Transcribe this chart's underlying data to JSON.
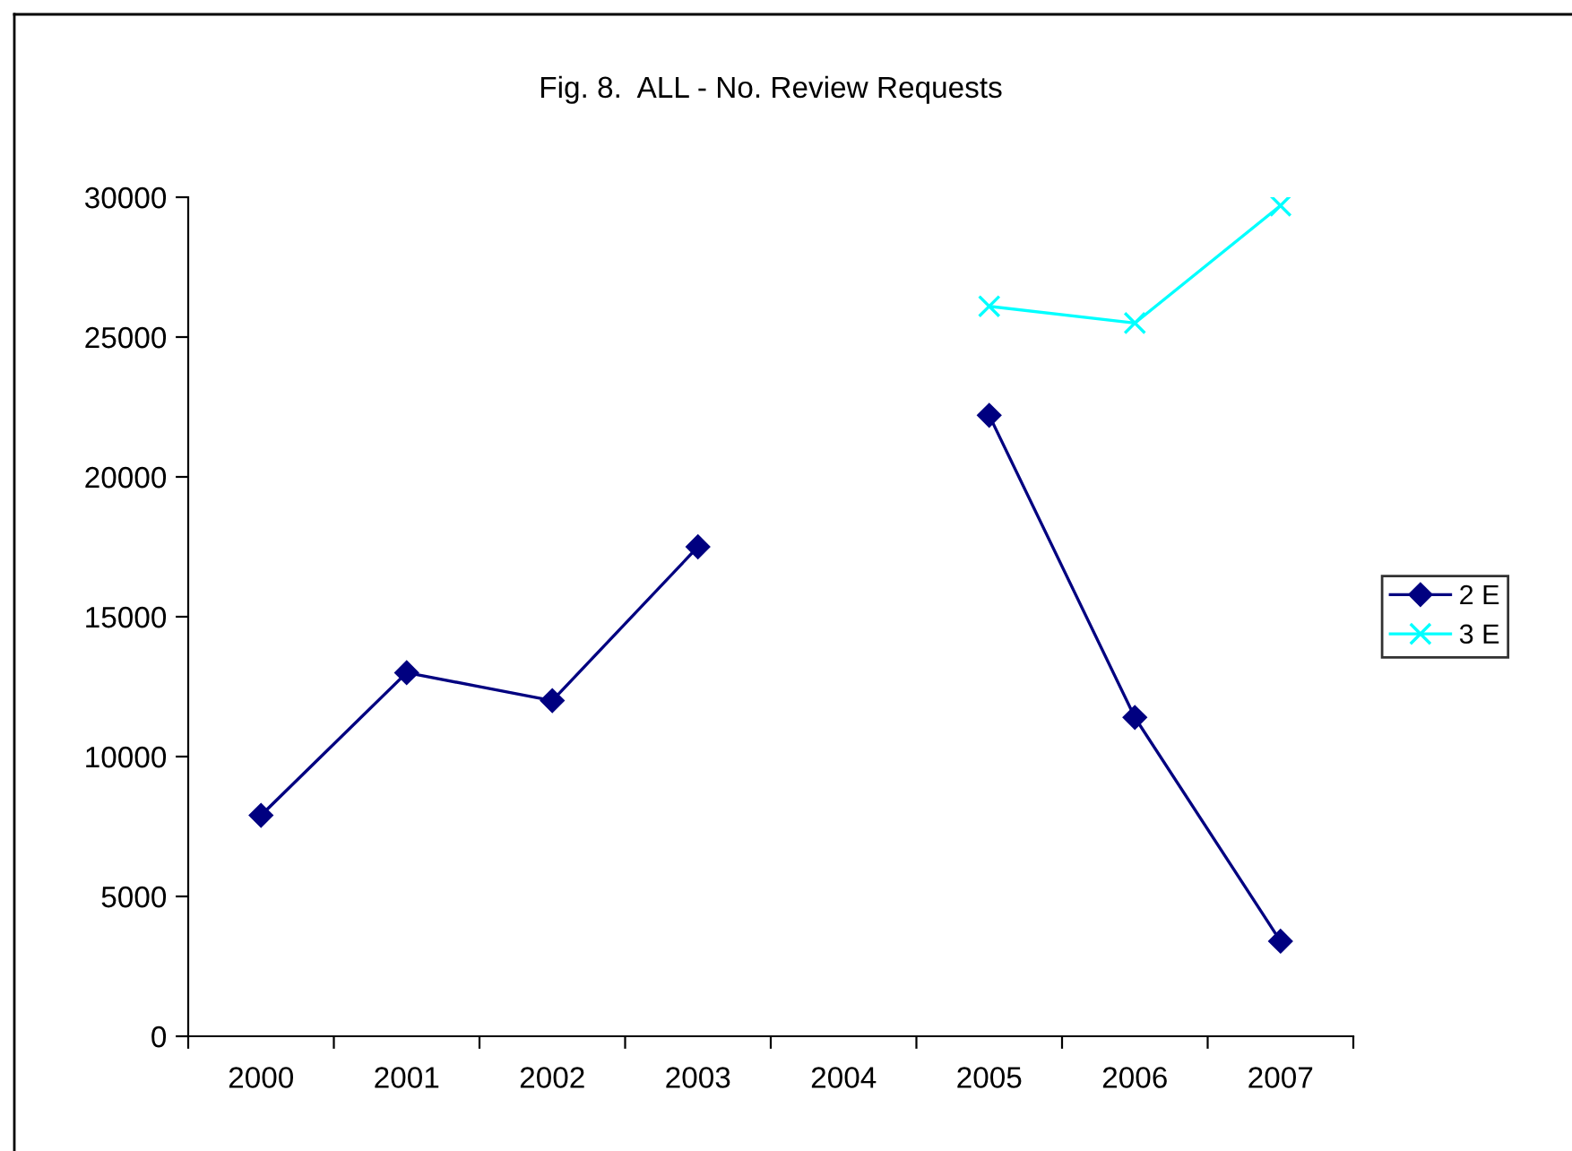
{
  "chart_data": {
    "type": "line",
    "title": "Fig. 8.  ALL - No. Review Requests",
    "categories": [
      "2000",
      "2001",
      "2002",
      "2003",
      "2004",
      "2005",
      "2006",
      "2007"
    ],
    "series": [
      {
        "name": "2 E",
        "color": "#000080",
        "marker": "diamond",
        "values": [
          7900,
          13000,
          12000,
          17500,
          null,
          22200,
          11400,
          3400
        ]
      },
      {
        "name": "3 E",
        "color": "#00ffff",
        "marker": "cross",
        "values": [
          null,
          null,
          null,
          null,
          null,
          26100,
          25500,
          29700
        ]
      }
    ],
    "ylim": [
      0,
      30000
    ],
    "yticks": [
      0,
      5000,
      10000,
      15000,
      20000,
      25000,
      30000
    ],
    "grid": false,
    "legend": "right",
    "line_style": "solid"
  }
}
